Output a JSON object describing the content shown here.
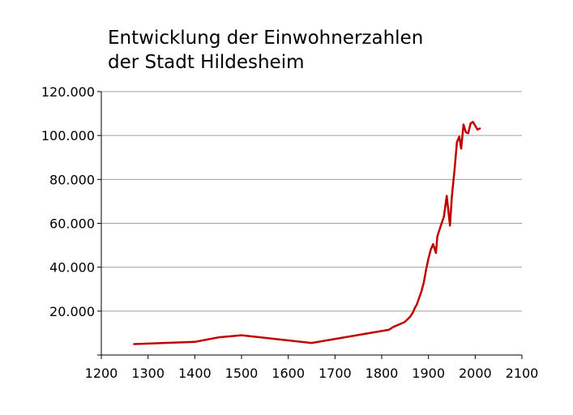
{
  "chart": {
    "title_line1": "Entwicklung der Einwohnerzahlen",
    "title_line2": "der Stadt Hildesheim"
  },
  "chart_data": {
    "type": "line",
    "title": "Entwicklung der Einwohnerzahlen der Stadt Hildesheim",
    "xlabel": "",
    "ylabel": "",
    "xlim": [
      1200,
      2100
    ],
    "ylim": [
      0,
      120000
    ],
    "x_ticks": [
      1200,
      1300,
      1400,
      1500,
      1600,
      1700,
      1800,
      1900,
      2000,
      2100
    ],
    "x_tick_labels": [
      "1200",
      "1300",
      "1400",
      "1500",
      "1600",
      "1700",
      "1800",
      "1900",
      "2000",
      "2100"
    ],
    "y_ticks": [
      20000,
      40000,
      60000,
      80000,
      100000,
      120000
    ],
    "y_tick_labels": [
      "20.000",
      "40.000",
      "60.000",
      "80.000",
      "100.000",
      "120.000"
    ],
    "grid": "horizontal",
    "line_color": "#c00000",
    "series": [
      {
        "x": [
          1270,
          1400,
          1450,
          1500,
          1650,
          1815,
          1825,
          1849,
          1861,
          1867,
          1871,
          1875,
          1880,
          1885,
          1890,
          1895,
          1900,
          1905,
          1910,
          1916,
          1919,
          1925,
          1933,
          1939,
          1946,
          1950,
          1956,
          1961,
          1966,
          1970,
          1975,
          1980,
          1985,
          1990,
          1995,
          2000,
          2005,
          2010
        ],
        "y": [
          5000,
          6000,
          8000,
          9000,
          5500,
          11500,
          12800,
          15000,
          17500,
          19500,
          21500,
          23000,
          26000,
          29000,
          33000,
          39000,
          44000,
          48000,
          50500,
          46500,
          54000,
          58000,
          63000,
          72500,
          59000,
          72000,
          85000,
          97000,
          99500,
          94000,
          105000,
          101500,
          101000,
          105500,
          106200,
          104500,
          102700,
          103200
        ]
      }
    ]
  }
}
